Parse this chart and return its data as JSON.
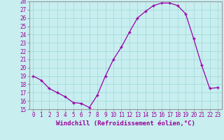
{
  "xlabel": "Windchill (Refroidissement éolien,°C)",
  "x": [
    0,
    1,
    2,
    3,
    4,
    5,
    6,
    7,
    8,
    9,
    10,
    11,
    12,
    13,
    14,
    15,
    16,
    17,
    18,
    19,
    20,
    21,
    22,
    23
  ],
  "y": [
    19.0,
    18.5,
    17.5,
    17.0,
    16.5,
    15.8,
    15.7,
    15.2,
    16.7,
    19.0,
    21.0,
    22.5,
    24.3,
    26.0,
    26.8,
    27.5,
    27.8,
    27.8,
    27.5,
    26.5,
    23.5,
    20.3,
    17.5,
    17.6
  ],
  "line_color": "#9900aa",
  "marker": "+",
  "bg_color": "#c8eef0",
  "grid_color": "#aadddd",
  "ylim": [
    15,
    28
  ],
  "xlim": [
    -0.5,
    23.5
  ],
  "yticks": [
    15,
    16,
    17,
    18,
    19,
    20,
    21,
    22,
    23,
    24,
    25,
    26,
    27,
    28
  ],
  "xticks": [
    0,
    1,
    2,
    3,
    4,
    5,
    6,
    7,
    8,
    9,
    10,
    11,
    12,
    13,
    14,
    15,
    16,
    17,
    18,
    19,
    20,
    21,
    22,
    23
  ],
  "tick_label_fontsize": 5.5,
  "xlabel_fontsize": 6.5,
  "label_color": "#990099",
  "spine_color": "#999999"
}
